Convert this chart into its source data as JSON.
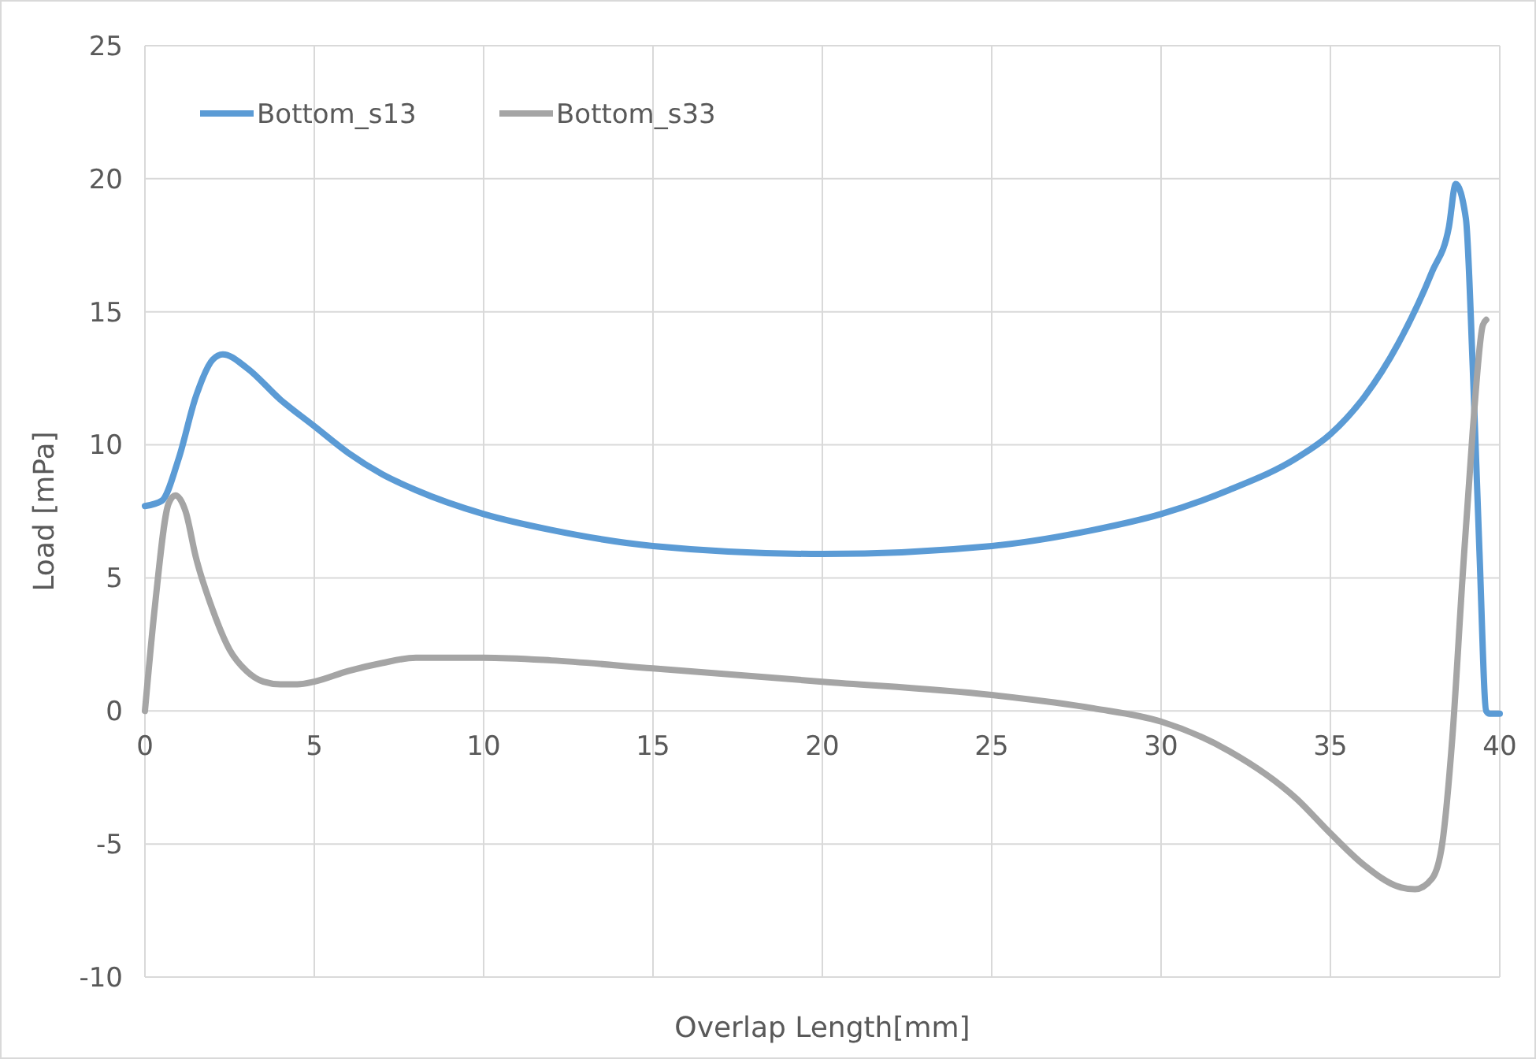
{
  "chart_data": {
    "type": "line",
    "xlabel": "Overlap Length[mm]",
    "ylabel": "Load [mPa]",
    "xlim": [
      0,
      40
    ],
    "xticks": [
      0,
      5,
      10,
      15,
      20,
      25,
      30,
      35,
      40
    ],
    "ylim": [
      -10,
      25
    ],
    "yticks": [
      -10,
      -5,
      0,
      5,
      10,
      15,
      20,
      25
    ],
    "grid": true,
    "legend": "top left",
    "line_style": "solid",
    "marker": "none",
    "series": [
      {
        "name": "Bottom_s13",
        "color": "#5b9bd5",
        "x": [
          0,
          0.5,
          1,
          1.5,
          2,
          2.3,
          3,
          4,
          5,
          6,
          7,
          8,
          10,
          12,
          15,
          20,
          25,
          28,
          30,
          32,
          34,
          35,
          36,
          37,
          38,
          38.5,
          38.7,
          39,
          39.2,
          39.4,
          39.6,
          39.7,
          40
        ],
        "values": [
          7.7,
          7.9,
          9.5,
          11.8,
          13.2,
          13.4,
          12.9,
          11.7,
          10.7,
          9.7,
          8.9,
          8.3,
          7.4,
          6.8,
          6.2,
          5.9,
          6.2,
          6.8,
          7.4,
          8.3,
          9.5,
          10.4,
          11.8,
          13.8,
          16.5,
          18.2,
          19.8,
          18.5,
          13,
          6,
          0,
          -0.1,
          -0.1
        ]
      },
      {
        "name": "Bottom_s33",
        "color": "#a5a5a5",
        "x": [
          0,
          0.3,
          0.7,
          0.9,
          1.2,
          1.5,
          2,
          2.5,
          3,
          3.5,
          4,
          4.5,
          5,
          6,
          7,
          8,
          10,
          12,
          15,
          20,
          25,
          28,
          30,
          32,
          34,
          35,
          36,
          37,
          37.5,
          38,
          38.3,
          38.6,
          38.9,
          39.2,
          39.5,
          39.6
        ],
        "values": [
          0,
          4,
          7.8,
          8.1,
          7.5,
          5.8,
          3.8,
          2.3,
          1.5,
          1.1,
          1.0,
          1.0,
          1.1,
          1.5,
          1.8,
          2.0,
          2.0,
          1.9,
          1.6,
          1.1,
          0.6,
          0.1,
          -0.4,
          -1.5,
          -3.3,
          -4.6,
          -5.8,
          -6.6,
          -6.7,
          -6.3,
          -5,
          -1,
          5,
          10.5,
          14.5,
          14.7
        ]
      }
    ]
  }
}
